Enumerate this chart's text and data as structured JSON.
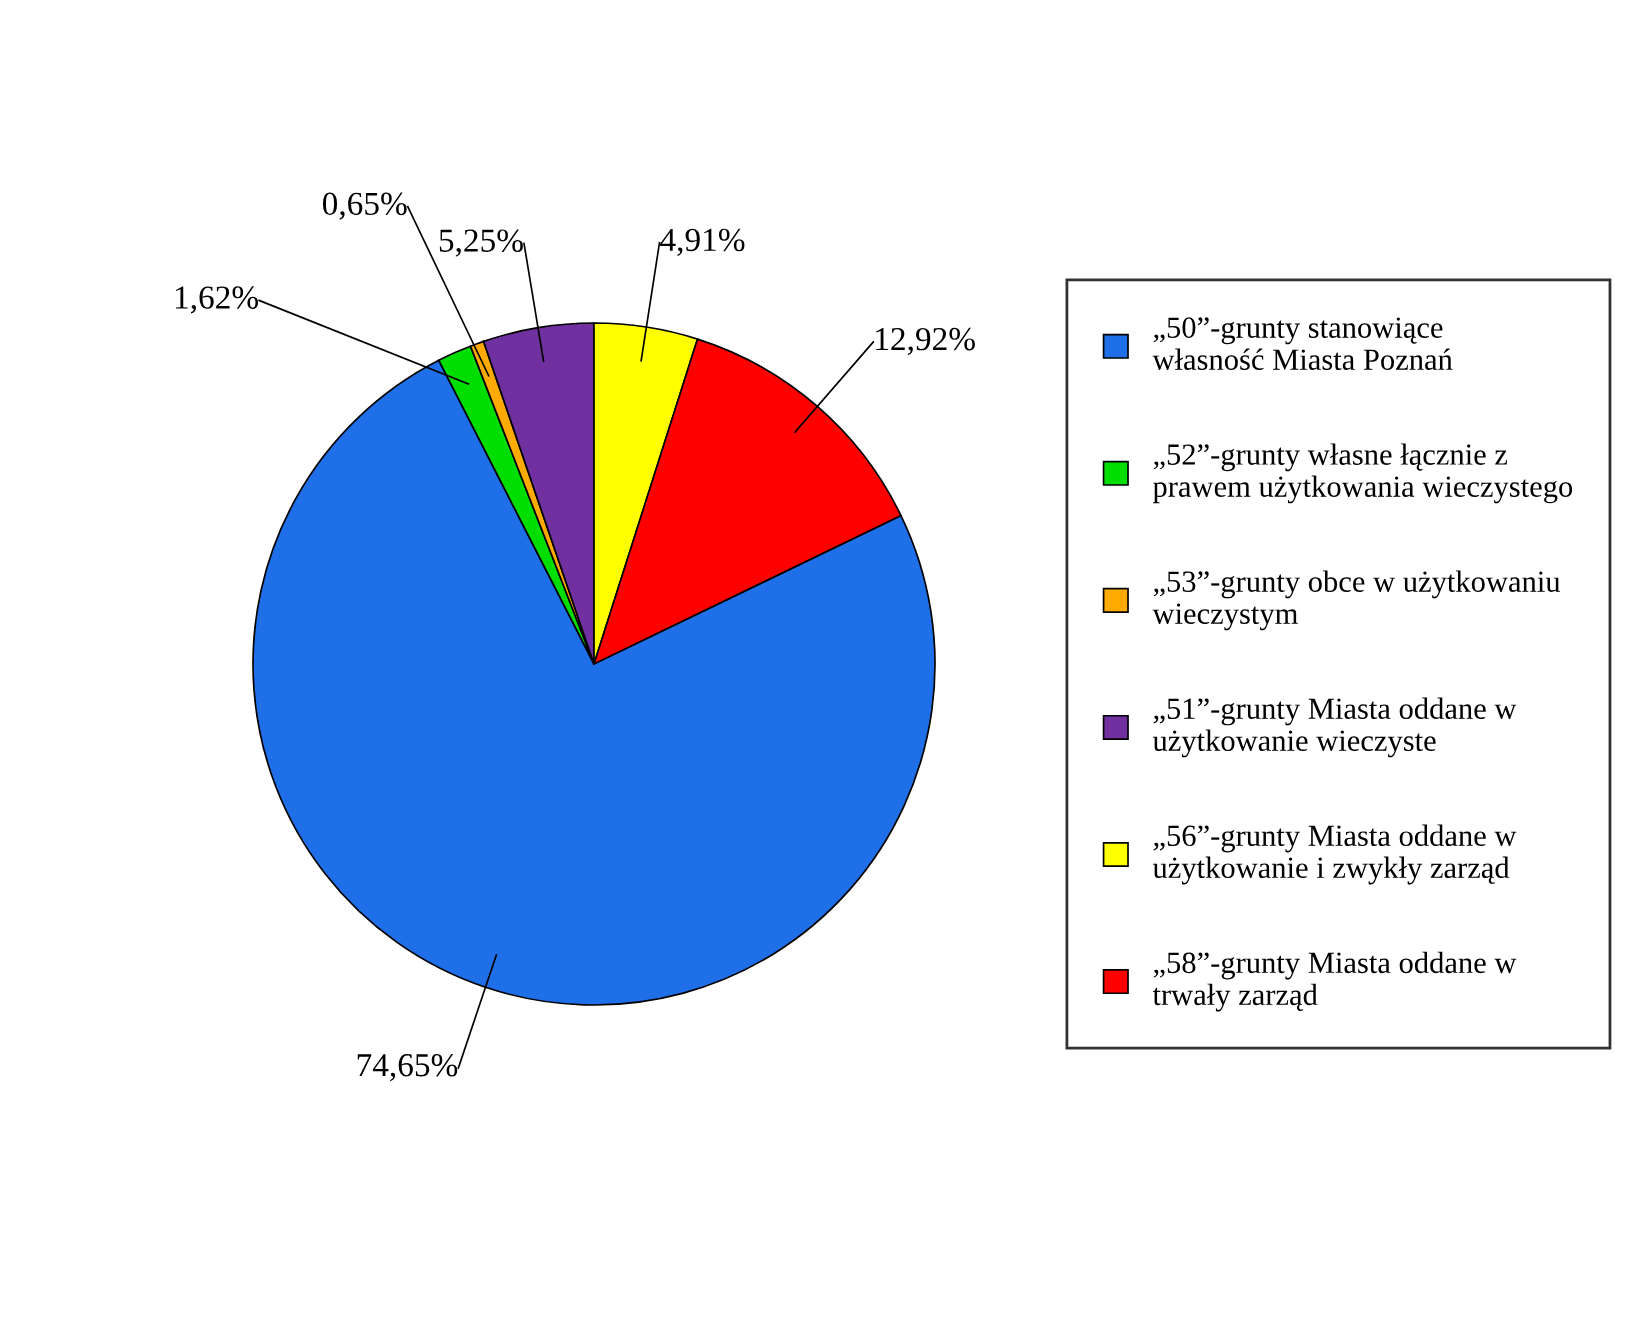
{
  "chart_data": {
    "type": "pie",
    "categories": [
      "„50”-grunty stanowiące własność Miasta Poznań",
      "„52”-grunty własne łącznie z prawem użytkowania wieczystego",
      "„53”-grunty obce w użytkowaniu wieczystym",
      "„51”-grunty Miasta oddane w użytkowanie wieczyste",
      "„56”-grunty Miasta oddane w użytkowanie i zwykły zarząd",
      "„58”-grunty Miasta oddane w trwały zarząd"
    ],
    "values": [
      74.65,
      1.62,
      0.65,
      5.25,
      4.91,
      12.92
    ],
    "value_labels": [
      "74,65%",
      "1,62%",
      "0,65%",
      "5,25%",
      "4,91%",
      "12,92%"
    ],
    "colors": [
      "#1f6fe8",
      "#00dd00",
      "#ffaa00",
      "#7030a0",
      "#ffff00",
      "#ff0000"
    ],
    "legend": "right"
  }
}
